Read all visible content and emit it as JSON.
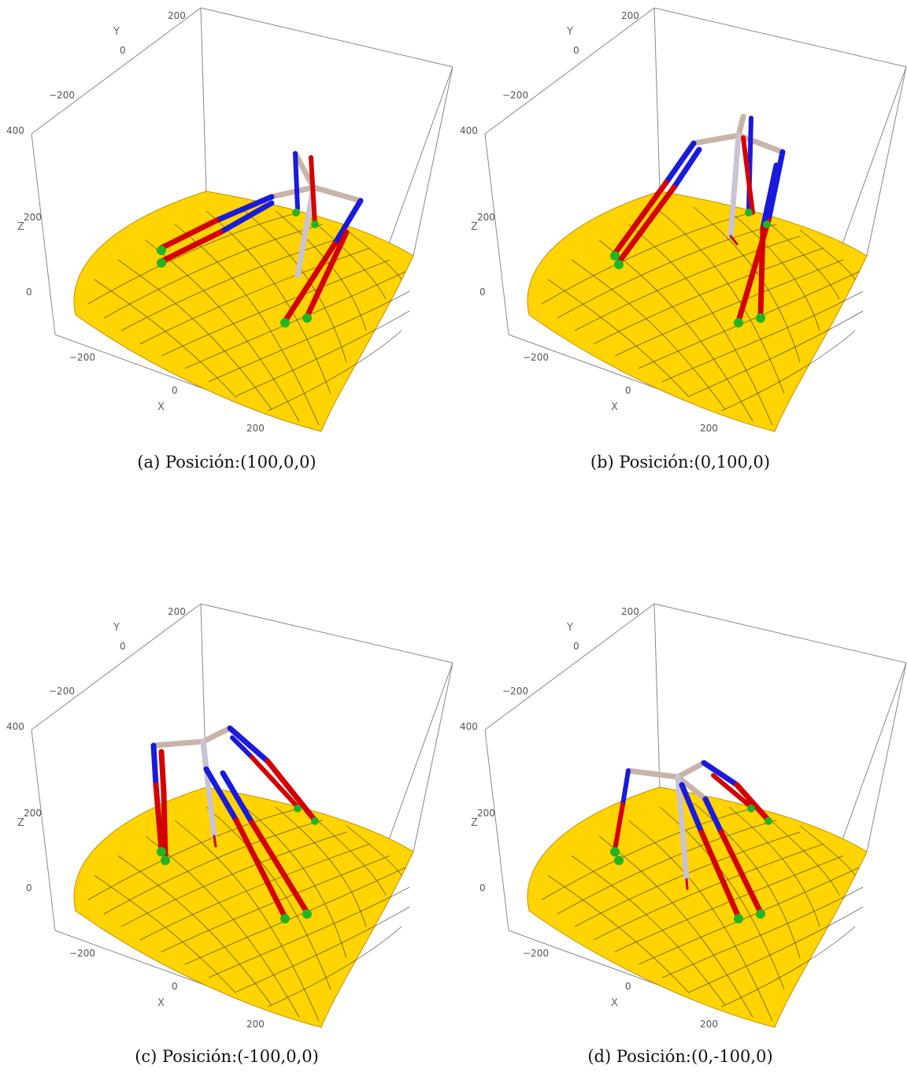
{
  "panels": [
    {
      "caption": "(a) Posición:(100,0,0)",
      "axes": {
        "y_label": "Y",
        "z_label": "Z",
        "x_label": "X",
        "y_ticks": [
          "200",
          "0",
          "−200"
        ],
        "z_ticks": [
          "400",
          "200",
          "0"
        ],
        "x_ticks": [
          "−200",
          "0",
          "200"
        ]
      }
    },
    {
      "caption": "(b) Posición:(0,100,0)",
      "axes": {
        "y_label": "Y",
        "z_label": "Z",
        "x_label": "X",
        "y_ticks": [
          "200",
          "0",
          "−200"
        ],
        "z_ticks": [
          "400",
          "200",
          "0"
        ],
        "x_ticks": [
          "−200",
          "0",
          "200"
        ]
      }
    },
    {
      "caption": "(c) Posición:(-100,0,0)",
      "axes": {
        "y_label": "Y",
        "z_label": "Z",
        "x_label": "X",
        "y_ticks": [
          "200",
          "0",
          "−200"
        ],
        "z_ticks": [
          "400",
          "200",
          "0"
        ],
        "x_ticks": [
          "−200",
          "0",
          "200"
        ]
      }
    },
    {
      "caption": "(d) Posición:(0,-100,0)",
      "axes": {
        "y_label": "Y",
        "z_label": "Z",
        "x_label": "X",
        "y_ticks": [
          "200",
          "0",
          "−200"
        ],
        "z_ticks": [
          "400",
          "200",
          "0"
        ],
        "x_ticks": [
          "−200",
          "0",
          "200"
        ]
      }
    }
  ],
  "colors": {
    "surface_light": "#ffee00",
    "surface_dark": "#f5a800",
    "link_upper": "#c8b4a8",
    "link_blue": "#1a1adc",
    "link_red": "#d40000",
    "foot_green": "#22b422",
    "body_light": "#c9c3d6"
  }
}
